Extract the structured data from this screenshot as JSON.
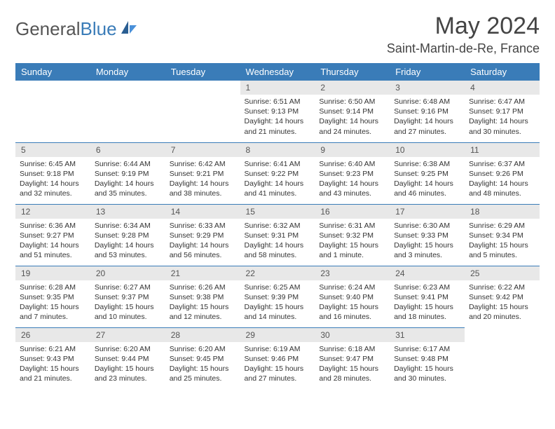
{
  "logo": {
    "text_gray": "General",
    "text_blue": "Blue"
  },
  "title": "May 2024",
  "location": "Saint-Martin-de-Re, France",
  "header_bg": "#3a7cb8",
  "header_text_color": "#ffffff",
  "border_color": "#3a7cb8",
  "daynum_bg": "#e8e8e8",
  "body_bg": "#ffffff",
  "font_family": "Arial",
  "day_headers": [
    "Sunday",
    "Monday",
    "Tuesday",
    "Wednesday",
    "Thursday",
    "Friday",
    "Saturday"
  ],
  "weeks": [
    [
      null,
      null,
      null,
      {
        "n": "1",
        "sunrise": "6:51 AM",
        "sunset": "9:13 PM",
        "daylight": "14 hours and 21 minutes."
      },
      {
        "n": "2",
        "sunrise": "6:50 AM",
        "sunset": "9:14 PM",
        "daylight": "14 hours and 24 minutes."
      },
      {
        "n": "3",
        "sunrise": "6:48 AM",
        "sunset": "9:16 PM",
        "daylight": "14 hours and 27 minutes."
      },
      {
        "n": "4",
        "sunrise": "6:47 AM",
        "sunset": "9:17 PM",
        "daylight": "14 hours and 30 minutes."
      }
    ],
    [
      {
        "n": "5",
        "sunrise": "6:45 AM",
        "sunset": "9:18 PM",
        "daylight": "14 hours and 32 minutes."
      },
      {
        "n": "6",
        "sunrise": "6:44 AM",
        "sunset": "9:19 PM",
        "daylight": "14 hours and 35 minutes."
      },
      {
        "n": "7",
        "sunrise": "6:42 AM",
        "sunset": "9:21 PM",
        "daylight": "14 hours and 38 minutes."
      },
      {
        "n": "8",
        "sunrise": "6:41 AM",
        "sunset": "9:22 PM",
        "daylight": "14 hours and 41 minutes."
      },
      {
        "n": "9",
        "sunrise": "6:40 AM",
        "sunset": "9:23 PM",
        "daylight": "14 hours and 43 minutes."
      },
      {
        "n": "10",
        "sunrise": "6:38 AM",
        "sunset": "9:25 PM",
        "daylight": "14 hours and 46 minutes."
      },
      {
        "n": "11",
        "sunrise": "6:37 AM",
        "sunset": "9:26 PM",
        "daylight": "14 hours and 48 minutes."
      }
    ],
    [
      {
        "n": "12",
        "sunrise": "6:36 AM",
        "sunset": "9:27 PM",
        "daylight": "14 hours and 51 minutes."
      },
      {
        "n": "13",
        "sunrise": "6:34 AM",
        "sunset": "9:28 PM",
        "daylight": "14 hours and 53 minutes."
      },
      {
        "n": "14",
        "sunrise": "6:33 AM",
        "sunset": "9:29 PM",
        "daylight": "14 hours and 56 minutes."
      },
      {
        "n": "15",
        "sunrise": "6:32 AM",
        "sunset": "9:31 PM",
        "daylight": "14 hours and 58 minutes."
      },
      {
        "n": "16",
        "sunrise": "6:31 AM",
        "sunset": "9:32 PM",
        "daylight": "15 hours and 1 minute."
      },
      {
        "n": "17",
        "sunrise": "6:30 AM",
        "sunset": "9:33 PM",
        "daylight": "15 hours and 3 minutes."
      },
      {
        "n": "18",
        "sunrise": "6:29 AM",
        "sunset": "9:34 PM",
        "daylight": "15 hours and 5 minutes."
      }
    ],
    [
      {
        "n": "19",
        "sunrise": "6:28 AM",
        "sunset": "9:35 PM",
        "daylight": "15 hours and 7 minutes."
      },
      {
        "n": "20",
        "sunrise": "6:27 AM",
        "sunset": "9:37 PM",
        "daylight": "15 hours and 10 minutes."
      },
      {
        "n": "21",
        "sunrise": "6:26 AM",
        "sunset": "9:38 PM",
        "daylight": "15 hours and 12 minutes."
      },
      {
        "n": "22",
        "sunrise": "6:25 AM",
        "sunset": "9:39 PM",
        "daylight": "15 hours and 14 minutes."
      },
      {
        "n": "23",
        "sunrise": "6:24 AM",
        "sunset": "9:40 PM",
        "daylight": "15 hours and 16 minutes."
      },
      {
        "n": "24",
        "sunrise": "6:23 AM",
        "sunset": "9:41 PM",
        "daylight": "15 hours and 18 minutes."
      },
      {
        "n": "25",
        "sunrise": "6:22 AM",
        "sunset": "9:42 PM",
        "daylight": "15 hours and 20 minutes."
      }
    ],
    [
      {
        "n": "26",
        "sunrise": "6:21 AM",
        "sunset": "9:43 PM",
        "daylight": "15 hours and 21 minutes."
      },
      {
        "n": "27",
        "sunrise": "6:20 AM",
        "sunset": "9:44 PM",
        "daylight": "15 hours and 23 minutes."
      },
      {
        "n": "28",
        "sunrise": "6:20 AM",
        "sunset": "9:45 PM",
        "daylight": "15 hours and 25 minutes."
      },
      {
        "n": "29",
        "sunrise": "6:19 AM",
        "sunset": "9:46 PM",
        "daylight": "15 hours and 27 minutes."
      },
      {
        "n": "30",
        "sunrise": "6:18 AM",
        "sunset": "9:47 PM",
        "daylight": "15 hours and 28 minutes."
      },
      {
        "n": "31",
        "sunrise": "6:17 AM",
        "sunset": "9:48 PM",
        "daylight": "15 hours and 30 minutes."
      },
      null
    ]
  ],
  "labels": {
    "sunrise_prefix": "Sunrise: ",
    "sunset_prefix": "Sunset: ",
    "daylight_prefix": "Daylight: "
  }
}
